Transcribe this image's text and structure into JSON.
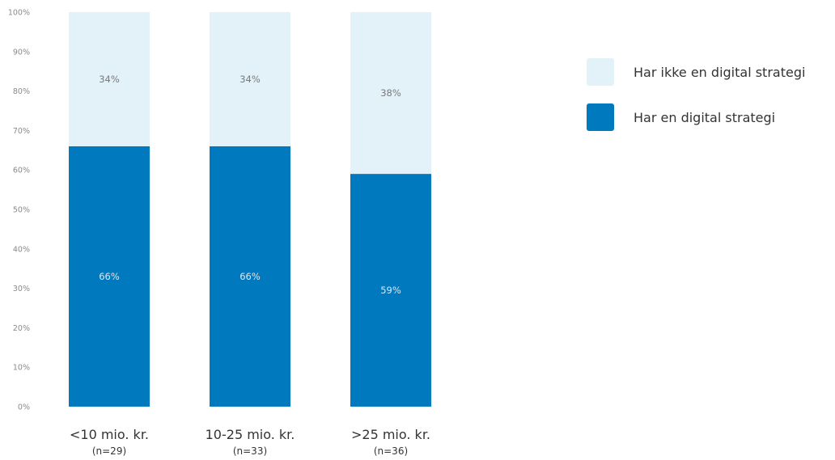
{
  "chart_data": {
    "type": "bar",
    "stacked": true,
    "percent": true,
    "categories": [
      "<10 mio. kr.",
      "10-25 mio. kr.",
      ">25 mio. kr."
    ],
    "category_notes": [
      "(n=29)",
      "(n=33)",
      "(n=36)"
    ],
    "series": [
      {
        "name": "Har en digital strategi",
        "values": [
          66,
          66,
          59
        ],
        "labels": [
          "66%",
          "66%",
          "59%"
        ],
        "color": "#0079be",
        "label_color": "#dce8f2"
      },
      {
        "name": "Har ikke en digital strategi",
        "values": [
          34,
          34,
          38
        ],
        "labels": [
          "34%",
          "34%",
          "38%"
        ],
        "color": "#e3f1f9",
        "label_color": "#7a7a7a"
      }
    ],
    "ylim": [
      0,
      100
    ],
    "yticks": [
      0,
      10,
      20,
      30,
      40,
      50,
      60,
      70,
      80,
      90,
      100
    ],
    "ytick_labels": [
      "0%",
      "10%",
      "20%",
      "30%",
      "40%",
      "50%",
      "60%",
      "70%",
      "80%",
      "90%",
      "100%"
    ],
    "grid": false,
    "legend_position": "right"
  },
  "legend": {
    "items": [
      {
        "label": "Har ikke en digital strategi",
        "color": "#e3f1f9"
      },
      {
        "label": "Har en digital strategi",
        "color": "#0079be"
      }
    ]
  }
}
